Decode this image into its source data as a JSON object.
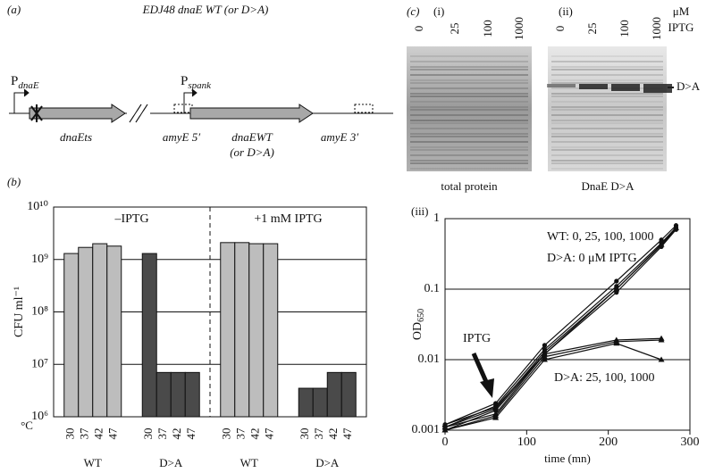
{
  "panels": {
    "a": "(a)",
    "b": "(b)",
    "c": "(c)",
    "iii": "(iii)"
  },
  "diagram": {
    "title": "EDJ48 dnaE WT (or D>A)",
    "promoters": [
      {
        "label": "P",
        "sub": "dnaE"
      },
      {
        "label": "P",
        "sub": "spank"
      }
    ],
    "labels": [
      "dnaEts",
      "amyE 5′",
      "dnaEWT",
      "(or D>A)",
      "amyE 3′"
    ]
  },
  "gels": {
    "panels": [
      "(i)",
      "(ii)"
    ],
    "lanes": [
      "0",
      "25",
      "100",
      "1000"
    ],
    "unit": "μM",
    "unit2": "IPTG",
    "band_label": "D>A",
    "captions": [
      "total protein",
      "DnaE D>A"
    ]
  },
  "chart_data": [
    {
      "type": "bar",
      "ylabel": "CFU ml⁻¹",
      "xunit": "°C",
      "log": true,
      "sections": [
        "–IPTG",
        "+1 mM IPTG"
      ],
      "categories": [
        "30",
        "37",
        "42",
        "47"
      ],
      "ylim": [
        1000000,
        10000000000
      ],
      "yticks": [
        {
          "value": 1000000,
          "label": "10⁶"
        },
        {
          "value": 10000000,
          "label": "10⁷"
        },
        {
          "value": 100000000,
          "label": "10⁸"
        },
        {
          "value": 1000000000,
          "label": "10⁹"
        },
        {
          "value": 10000000000,
          "label": "10¹⁰"
        }
      ],
      "grid": true,
      "series": [
        {
          "name": "WT",
          "color": "#bdbdbd",
          "values": [
            1300000000,
            1700000000,
            2000000000,
            1800000000
          ]
        },
        {
          "name": "D>A",
          "color": "#4a4a4a",
          "values": [
            1300000000,
            7000000,
            7000000,
            7000000
          ]
        },
        {
          "name": "WT",
          "color": "#bdbdbd",
          "values": [
            2100000000,
            2100000000,
            2000000000,
            2000000000
          ]
        },
        {
          "name": "D>A",
          "color": "#4a4a4a",
          "values": [
            3500000,
            3500000,
            7000000,
            7000000
          ]
        }
      ]
    },
    {
      "type": "line",
      "xlabel": "time (mn)",
      "ylabel": "OD",
      "ylabel_sub": "650",
      "log": true,
      "xlim": [
        0,
        300
      ],
      "xticks": [
        0,
        100,
        200,
        300
      ],
      "ylim": [
        0.001,
        1
      ],
      "yticks": [
        0.001,
        0.01,
        0.1,
        1
      ],
      "grid": true,
      "annotations": [
        "WT: 0, 25, 100, 1000",
        "D>A: 0 μM IPTG",
        "D>A: 25, 100, 1000",
        "IPTG"
      ],
      "series": [
        {
          "color": "#111",
          "marker": "circle",
          "x": [
            0,
            62,
            122,
            210,
            265,
            283
          ],
          "values": [
            0.0012,
            0.0024,
            0.016,
            0.13,
            0.5,
            0.8
          ]
        },
        {
          "color": "#111",
          "marker": "circle",
          "x": [
            0,
            62,
            122,
            210,
            265,
            283
          ],
          "values": [
            0.0011,
            0.0022,
            0.014,
            0.11,
            0.45,
            0.75
          ]
        },
        {
          "color": "#111",
          "marker": "circle",
          "x": [
            0,
            62,
            122,
            210,
            265,
            283
          ],
          "values": [
            0.0011,
            0.002,
            0.013,
            0.1,
            0.42,
            0.72
          ]
        },
        {
          "color": "#111",
          "marker": "circle",
          "x": [
            0,
            62,
            122,
            210,
            265,
            283
          ],
          "values": [
            0.001,
            0.0019,
            0.012,
            0.09,
            0.4,
            0.7
          ]
        },
        {
          "color": "#111",
          "marker": "triangle",
          "x": [
            0,
            62,
            122,
            210,
            265,
            283
          ],
          "values": [
            0.0012,
            0.0021,
            0.012,
            0.1,
            0.43,
            0.74
          ]
        },
        {
          "color": "#111",
          "marker": "triangle",
          "x": [
            0,
            62,
            122,
            210,
            265
          ],
          "values": [
            0.0011,
            0.0017,
            0.012,
            0.019,
            0.02
          ]
        },
        {
          "color": "#111",
          "marker": "triangle",
          "x": [
            0,
            62,
            122,
            210,
            265
          ],
          "values": [
            0.001,
            0.0016,
            0.011,
            0.018,
            0.019
          ]
        },
        {
          "color": "#111",
          "marker": "triangle",
          "x": [
            0,
            62,
            122,
            210,
            265
          ],
          "values": [
            0.001,
            0.0015,
            0.01,
            0.017,
            0.01
          ]
        }
      ]
    }
  ]
}
